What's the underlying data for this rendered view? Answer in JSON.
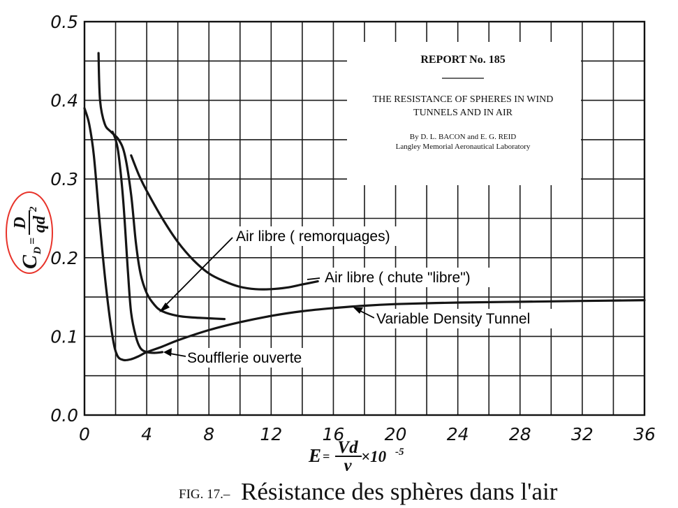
{
  "chart_data": {
    "type": "line",
    "xlim": [
      0,
      36
    ],
    "ylim": [
      0.0,
      0.5
    ],
    "x_ticks": [
      "0",
      "4",
      "8",
      "12",
      "16",
      "20",
      "24",
      "28",
      "32",
      "36"
    ],
    "y_ticks": [
      "0.0",
      "0.1",
      "0.2",
      "0.3",
      "0.4",
      "0.5"
    ],
    "grid": true,
    "ylabel": {
      "lhs": "C",
      "sub": "D",
      "num": "D",
      "den": "qd",
      "sup": "2"
    },
    "xlabel": {
      "lhs": "E",
      "num": "Vd",
      "den": "ν",
      "tail": "×10",
      "exp": "-5"
    },
    "series": [
      {
        "name": "Air libre (remorquages)",
        "x": [
          0.9,
          1.0,
          1.3,
          1.7,
          2.2,
          2.6,
          3.0,
          3.3,
          3.6,
          4.0,
          4.5,
          5.0,
          6.0,
          7.0,
          8.0,
          9.0
        ],
        "y": [
          0.46,
          0.4,
          0.37,
          0.36,
          0.35,
          0.33,
          0.28,
          0.22,
          0.18,
          0.155,
          0.14,
          0.132,
          0.126,
          0.124,
          0.123,
          0.122
        ]
      },
      {
        "name": "Air libre (chute \"libre\")",
        "x": [
          3.0,
          3.5,
          4.0,
          5.0,
          6.0,
          7.0,
          8.0,
          9.0,
          10.0,
          11.0,
          12.0,
          13.0,
          14.0,
          15.0
        ],
        "y": [
          0.33,
          0.305,
          0.285,
          0.25,
          0.22,
          0.197,
          0.18,
          0.17,
          0.163,
          0.16,
          0.16,
          0.162,
          0.166,
          0.17
        ]
      },
      {
        "name": "Variable Density Tunnel",
        "x": [
          0.0,
          0.3,
          0.6,
          1.0,
          1.4,
          1.8,
          2.1,
          2.5,
          3.0,
          3.5,
          4.0,
          5.0,
          6.0,
          8.0,
          10.0,
          12.0,
          14.0,
          16.0,
          18.0,
          20.0,
          24.0,
          28.0,
          32.0,
          36.0
        ],
        "y": [
          0.39,
          0.37,
          0.33,
          0.24,
          0.16,
          0.1,
          0.076,
          0.07,
          0.071,
          0.075,
          0.08,
          0.087,
          0.095,
          0.108,
          0.118,
          0.126,
          0.132,
          0.136,
          0.139,
          0.141,
          0.143,
          0.144,
          0.145,
          0.146
        ]
      },
      {
        "name": "Soufflerie ouverte",
        "x": [
          1.8,
          2.0,
          2.2,
          2.5,
          2.8,
          3.0,
          3.3,
          3.6,
          4.0,
          4.5,
          5.0
        ],
        "y": [
          0.36,
          0.35,
          0.33,
          0.27,
          0.18,
          0.13,
          0.1,
          0.085,
          0.08,
          0.079,
          0.08
        ]
      }
    ],
    "annotations": [
      {
        "text": "Air libre  ( remorquages)"
      },
      {
        "text": "Air libre  ( chute \"libre\")"
      },
      {
        "text": "Variable Density Tunnel"
      },
      {
        "text": "Soufflerie ouverte"
      }
    ]
  },
  "report_box": {
    "number": "REPORT No. 185",
    "title_line1": "THE RESISTANCE OF SPHERES IN WIND",
    "title_line2": "TUNNELS AND IN AIR",
    "authors": "By D. L. BACON and E. G. REID",
    "lab": "Langley Memorial Aeronautical Laboratory"
  },
  "caption": {
    "fig": "FIG. 17.–",
    "text": "Résistance des sphères dans l'air"
  },
  "colors": {
    "ink": "#151515",
    "highlight": "#e8332a",
    "report_bg": "#ffffff"
  }
}
